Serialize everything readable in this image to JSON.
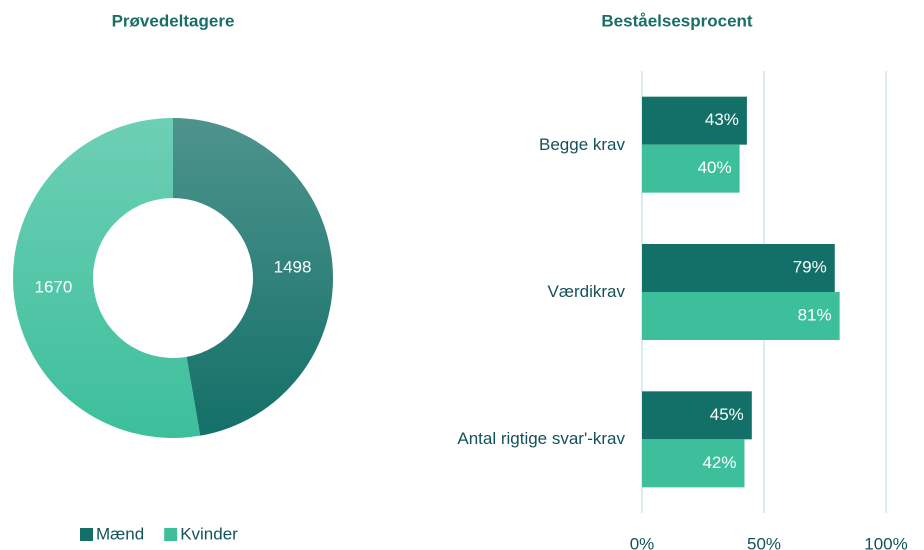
{
  "chart_data": [
    {
      "type": "pie",
      "title": "Prøvedeltagere",
      "categories": [
        "Mænd",
        "Kvinder"
      ],
      "values": [
        1498,
        1670
      ],
      "colors": [
        "#137068",
        "#3dbf9c"
      ],
      "donut": true,
      "legend": "bottom"
    },
    {
      "type": "barh",
      "title": "Beståelsesprocent",
      "categories": [
        "Begge krav",
        "Værdikrav",
        "Antal rigtige svar'-krav"
      ],
      "series": [
        {
          "color": "#137068",
          "values": [
            43,
            79,
            45
          ],
          "value_labels": [
            "43%",
            "79%",
            "45%"
          ]
        },
        {
          "color": "#3dbf9c",
          "values": [
            40,
            81,
            42
          ],
          "value_labels": [
            "40%",
            "81%",
            "42%"
          ]
        }
      ],
      "xlim": [
        0,
        100
      ],
      "xticks": [
        {
          "value": 0,
          "label": "0%"
        },
        {
          "value": 50,
          "label": "50%"
        },
        {
          "value": 100,
          "label": "100%"
        }
      ],
      "grid": true
    }
  ]
}
